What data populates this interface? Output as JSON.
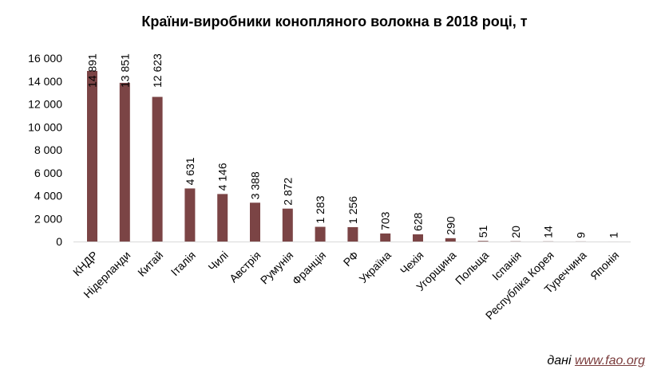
{
  "chart_data": {
    "type": "bar",
    "title": "Країни-виробники конопляного волокна в 2018 році, т",
    "xlabel": "",
    "ylabel": "",
    "ylim": [
      0,
      16000
    ],
    "yticks": [
      "0",
      "2 000",
      "4 000",
      "6 000",
      "8 000",
      "10 000",
      "12 000",
      "14 000",
      "16 000"
    ],
    "categories": [
      "КНДР",
      "Нідерланди",
      "Китай",
      "Італія",
      "Чилі",
      "Австрія",
      "Румунія",
      "Франція",
      "РФ",
      "Україна",
      "Чехія",
      "Угорщина",
      "Польща",
      "Іспанія",
      "Республіка Корея",
      "Туреччина",
      "Японія"
    ],
    "values": [
      14891,
      13851,
      12623,
      4631,
      4146,
      3388,
      2872,
      1283,
      1256,
      703,
      628,
      290,
      51,
      20,
      14,
      9,
      1
    ],
    "value_labels": [
      "14 891",
      "13 851",
      "12 623",
      "4 631",
      "4 146",
      "3 388",
      "2 872",
      "1 283",
      "1 256",
      "703",
      "628",
      "290",
      "51",
      "20",
      "14",
      "9",
      "1"
    ],
    "bar_color": "#7b4445",
    "grid": false,
    "legend": "none"
  },
  "source": {
    "prefix": "дані",
    "link": "www.fao.org"
  }
}
